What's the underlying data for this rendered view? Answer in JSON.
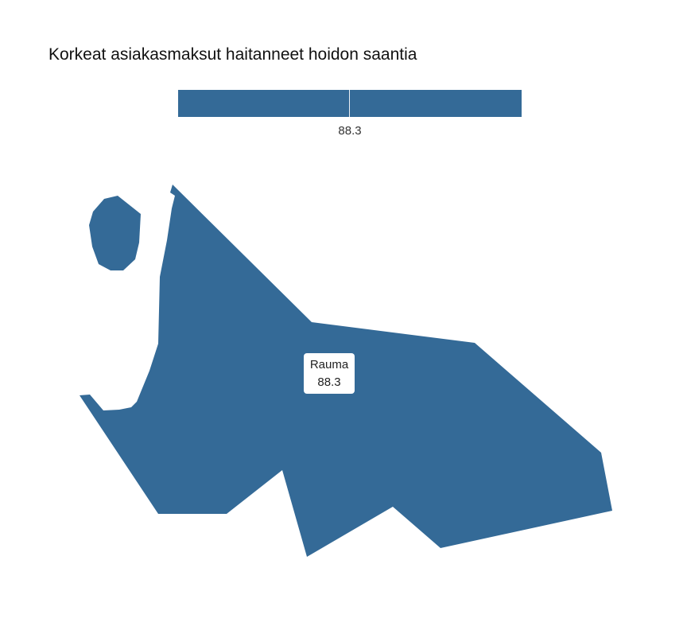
{
  "title": "Korkeat asiakasmaksut haitanneet hoidon saantia",
  "legend": {
    "value_label": "88.3",
    "color": "#346a97"
  },
  "map": {
    "fill_color": "#346a97",
    "regions": [
      {
        "name": "Rauma",
        "value": "88.3"
      }
    ]
  },
  "tooltip": {
    "region": "Rauma",
    "value": "88.3"
  }
}
